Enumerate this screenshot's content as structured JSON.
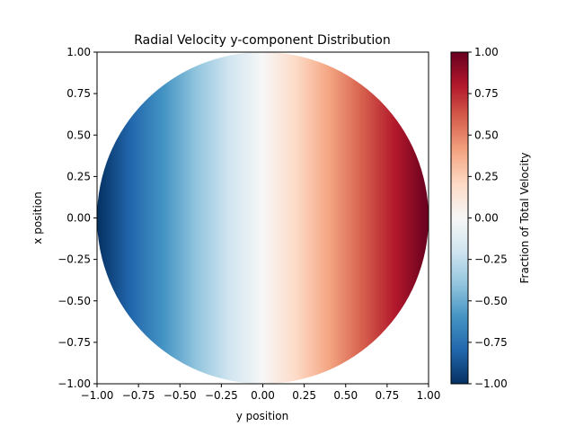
{
  "chart_data": {
    "type": "heatmap",
    "title": "Radial Velocity y-component Distribution",
    "xlabel": "y position",
    "ylabel": "x position",
    "xlim": [
      -1.0,
      1.0
    ],
    "ylim": [
      -1.0,
      1.0
    ],
    "x_ticks": [
      -1.0,
      -0.75,
      -0.5,
      -0.25,
      0.0,
      0.25,
      0.5,
      0.75,
      1.0
    ],
    "y_ticks": [
      -1.0,
      -0.75,
      -0.5,
      -0.25,
      0.0,
      0.25,
      0.5,
      0.75,
      1.0
    ],
    "x_tick_labels": [
      "−1.00",
      "−0.75",
      "−0.50",
      "−0.25",
      "0.00",
      "0.25",
      "0.50",
      "0.75",
      "1.00"
    ],
    "y_tick_labels": [
      "−1.00",
      "−0.75",
      "−0.50",
      "−0.25",
      "0.00",
      "0.25",
      "0.50",
      "0.75",
      "1.00"
    ],
    "field": "value = y position, shown only inside the unit circle",
    "mask": "unit circle",
    "colormap": "RdBu_r",
    "colormap_stops": [
      "#053061",
      "#2166ac",
      "#4393c3",
      "#92c5de",
      "#d1e5f0",
      "#f7f7f7",
      "#fddbc7",
      "#f4a582",
      "#d6604d",
      "#b2182b",
      "#67001f"
    ],
    "colorbar": {
      "label": "Fraction of Total Velocity",
      "range": [
        -1.0,
        1.0
      ],
      "ticks": [
        -1.0,
        -0.75,
        -0.5,
        -0.25,
        0.0,
        0.25,
        0.5,
        0.75,
        1.0
      ],
      "tick_labels": [
        "−1.00",
        "−0.75",
        "−0.50",
        "−0.25",
        "0.00",
        "0.25",
        "0.50",
        "0.75",
        "1.00"
      ]
    },
    "grid": false
  }
}
